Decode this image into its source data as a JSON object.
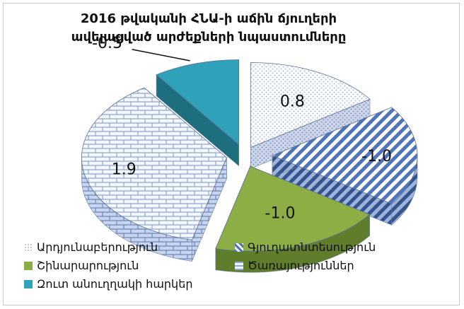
{
  "chart_data": {
    "type": "pie",
    "title": "2016 թվականի ՀՆԱ-ի աճին ճյուղերի ավելացված արժեքների նպաստումները",
    "categories": [
      "Արդյունաբերություն",
      "Գյուղատնտեսություն",
      "Շինարարություն",
      "Ծառայություններ",
      "Զուտ անուղղակի հարկեր"
    ],
    "values": [
      0.8,
      -1.0,
      -1.0,
      1.9,
      -0.5
    ],
    "labels": [
      "0.8",
      "-1.0",
      "-1.0",
      "1.9",
      "-0.5"
    ],
    "legend_position": "bottom",
    "colors": [
      "#dfe6f3",
      "#5b7fc0",
      "#8cae45",
      "#cfdbee",
      "#2fa1b8"
    ]
  }
}
